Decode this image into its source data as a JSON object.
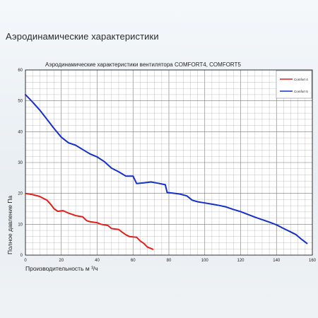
{
  "page": {
    "heading": "Аэродинамические характеристики"
  },
  "chart_data": {
    "type": "line",
    "title": "Аэродинамические характеристики вентилятора    COMFORT4,  COMFORT5",
    "xlabel": "Производительность м ³/ч",
    "ylabel": "Полное давление Па",
    "xlim": [
      0,
      160
    ],
    "ylim": [
      0,
      60
    ],
    "grid": true,
    "legend_position": "top-right",
    "x_ticks": [
      "0",
      "20",
      "40",
      "60",
      "80",
      "100",
      "120",
      "140",
      "160"
    ],
    "y_ticks": [
      "0",
      "10",
      "20",
      "30",
      "40",
      "50",
      "60"
    ],
    "series": [
      {
        "name": "Comfort 4",
        "color": "#e0201b",
        "points": [
          [
            0,
            20
          ],
          [
            4,
            19.6
          ],
          [
            8,
            19
          ],
          [
            10,
            18.4
          ],
          [
            12,
            17.8
          ],
          [
            14,
            16.5
          ],
          [
            16,
            15
          ],
          [
            18,
            14.2
          ],
          [
            21,
            14.4
          ],
          [
            24,
            13.6
          ],
          [
            28,
            12.8
          ],
          [
            32,
            12.4
          ],
          [
            34,
            11.2
          ],
          [
            36,
            10.8
          ],
          [
            40,
            10.5
          ],
          [
            42,
            10
          ],
          [
            46,
            9.6
          ],
          [
            48,
            8.6
          ],
          [
            52,
            8.3
          ],
          [
            54,
            7.4
          ],
          [
            56,
            6.6
          ],
          [
            58,
            6
          ],
          [
            62,
            5.8
          ],
          [
            64,
            4.6
          ],
          [
            66,
            3.8
          ],
          [
            68,
            2.6
          ],
          [
            71,
            1.9
          ]
        ]
      },
      {
        "name": "Comfort 5",
        "color": "#1530c8",
        "points": [
          [
            0,
            52
          ],
          [
            4,
            49.6
          ],
          [
            8,
            47
          ],
          [
            12,
            44
          ],
          [
            16,
            41
          ],
          [
            20,
            38.2
          ],
          [
            24,
            36.4
          ],
          [
            28,
            35.6
          ],
          [
            32,
            34.2
          ],
          [
            36,
            32.8
          ],
          [
            40,
            31.8
          ],
          [
            44,
            30.3
          ],
          [
            48,
            28.2
          ],
          [
            52,
            27
          ],
          [
            56,
            25.6
          ],
          [
            60,
            25.6
          ],
          [
            62,
            23.2
          ],
          [
            66,
            23.4
          ],
          [
            70,
            23.7
          ],
          [
            74,
            23.3
          ],
          [
            78,
            22.8
          ],
          [
            79,
            20.3
          ],
          [
            82,
            20.1
          ],
          [
            86,
            19.8
          ],
          [
            90,
            19.2
          ],
          [
            93,
            17.8
          ],
          [
            96,
            17.3
          ],
          [
            100,
            16.9
          ],
          [
            104,
            16.5
          ],
          [
            108,
            16.1
          ],
          [
            112,
            15.6
          ],
          [
            116,
            14.8
          ],
          [
            120,
            14.1
          ],
          [
            124,
            13.2
          ],
          [
            128,
            12.3
          ],
          [
            132,
            11.5
          ],
          [
            136,
            10.7
          ],
          [
            140,
            9.8
          ],
          [
            144,
            8.6
          ],
          [
            148,
            7.5
          ],
          [
            151,
            6.6
          ],
          [
            154,
            5.1
          ],
          [
            157,
            3.8
          ]
        ]
      }
    ]
  }
}
